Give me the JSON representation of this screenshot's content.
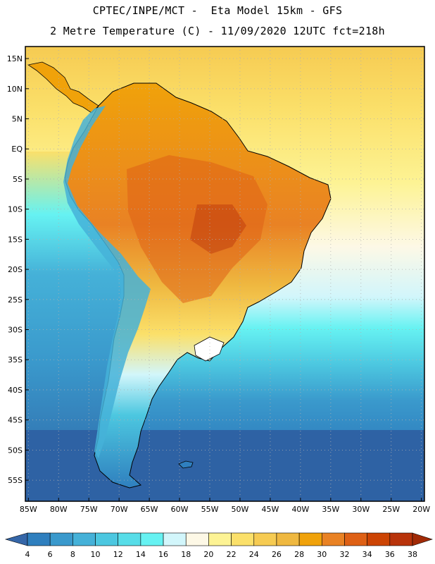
{
  "header": {
    "line1": "CPTEC/INPE/MCT -  Eta Model 15km - GFS",
    "line2": "2 Metre Temperature (C) - 11/09/2020 12UTC fct=218h"
  },
  "map": {
    "lat_labels": [
      "15N",
      "10N",
      "5N",
      "EQ",
      "5S",
      "10S",
      "15S",
      "20S",
      "25S",
      "30S",
      "35S",
      "40S",
      "45S",
      "50S",
      "55S"
    ],
    "lat_values": [
      15,
      10,
      5,
      0,
      -5,
      -10,
      -15,
      -20,
      -25,
      -30,
      -35,
      -40,
      -45,
      -50,
      -55
    ],
    "lon_labels": [
      "85W",
      "80W",
      "75W",
      "70W",
      "65W",
      "60W",
      "55W",
      "50W",
      "45W",
      "40W",
      "35W",
      "30W",
      "25W",
      "20W"
    ],
    "lon_values": [
      -85,
      -80,
      -75,
      -70,
      -65,
      -60,
      -55,
      -50,
      -45,
      -40,
      -35,
      -30,
      -25,
      -20
    ],
    "extent": {
      "lon_min": -85.5,
      "lon_max": -19.5,
      "lat_min": -58.5,
      "lat_max": 17
    }
  },
  "legend": {
    "units": "C",
    "levels": [
      "4",
      "6",
      "8",
      "10",
      "12",
      "14",
      "16",
      "18",
      "20",
      "22",
      "24",
      "26",
      "28",
      "30",
      "32",
      "34",
      "36",
      "38"
    ],
    "colors": [
      "#3566a8",
      "#2f7fbe",
      "#3a99cc",
      "#45b1d8",
      "#4cc7e0",
      "#57dde8",
      "#66f2f2",
      "#d2f6fb",
      "#fdf8e6",
      "#fdf394",
      "#fbe06a",
      "#f6cb52",
      "#efb840",
      "#f0a20a",
      "#e98224",
      "#de6015",
      "#cc4404",
      "#b8330a",
      "#a12a06"
    ]
  },
  "palette": {
    "ocean_south": "#2e62a4",
    "ocean_mid": "#4aa7d4",
    "ocean_warm": "#fbe06a",
    "land_hot": "#e98224",
    "andes_cold": "#45b1d8",
    "grid": "#b0b0b0"
  }
}
